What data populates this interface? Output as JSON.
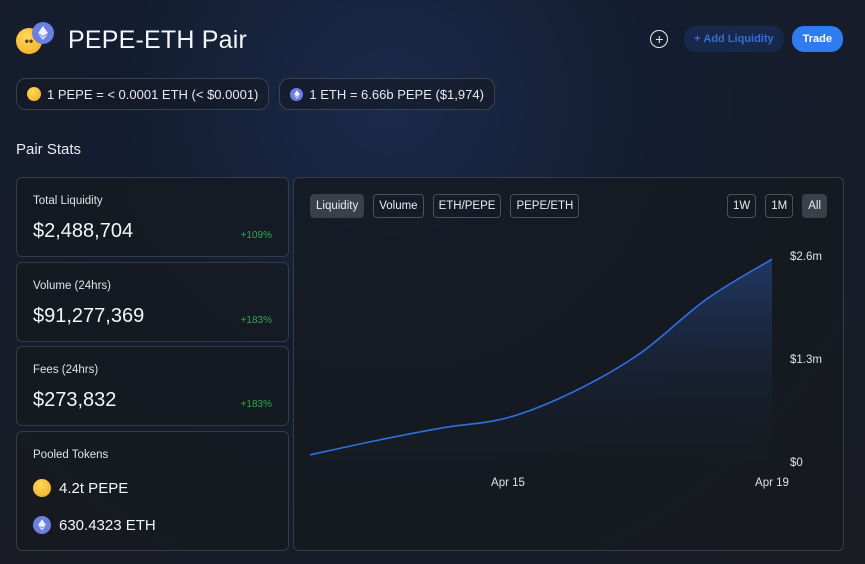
{
  "header": {
    "title": "PEPE-ETH Pair"
  },
  "actions": {
    "add_liquidity": "+ Add Liquidity",
    "trade": "Trade"
  },
  "prices": {
    "pepe_in_eth": "1 PEPE = < 0.0001 ETH (< $0.0001)",
    "eth_in_pepe": "1 ETH = 6.66b PEPE ($1,974)"
  },
  "section_title": "Pair Stats",
  "stats": [
    {
      "label": "Total Liquidity",
      "value": "$2,488,704",
      "change": "+109%"
    },
    {
      "label": "Volume (24hrs)",
      "value": "$91,277,369",
      "change": "+183%"
    },
    {
      "label": "Fees (24hrs)",
      "value": "$273,832",
      "change": "+183%"
    }
  ],
  "pooled": {
    "label": "Pooled Tokens",
    "tokens": [
      {
        "amount": "4.2t PEPE"
      },
      {
        "amount": "630.4323 ETH"
      }
    ]
  },
  "chart": {
    "tabs": [
      "Liquidity",
      "Volume",
      "ETH/PEPE",
      "PEPE/ETH"
    ],
    "active_tab": "Liquidity",
    "ranges": [
      "1W",
      "1M",
      "All"
    ],
    "active_range": "All"
  },
  "colors": {
    "accent": "#2f7bf0",
    "positive": "#2fa84f",
    "line": "#2f6fe0"
  },
  "chart_data": {
    "type": "area",
    "title": "",
    "ylabel": "",
    "xlabel": "",
    "x_ticks": [
      "Apr 15",
      "Apr 19"
    ],
    "y_ticks": [
      "$2.6m",
      "$1.3m",
      "$0"
    ],
    "ylim": [
      0,
      2600000
    ],
    "series": [
      {
        "values": [
          {
            "x": "Apr 12",
            "y": 90000
          },
          {
            "x": "Apr 13",
            "y": 270000
          },
          {
            "x": "Apr 14",
            "y": 430000
          },
          {
            "x": "Apr 15",
            "y": 560000
          },
          {
            "x": "Apr 16",
            "y": 890000
          },
          {
            "x": "Apr 17",
            "y": 1370000
          },
          {
            "x": "Apr 18",
            "y": 2050000
          },
          {
            "x": "Apr 19",
            "y": 2560000
          }
        ]
      }
    ]
  }
}
